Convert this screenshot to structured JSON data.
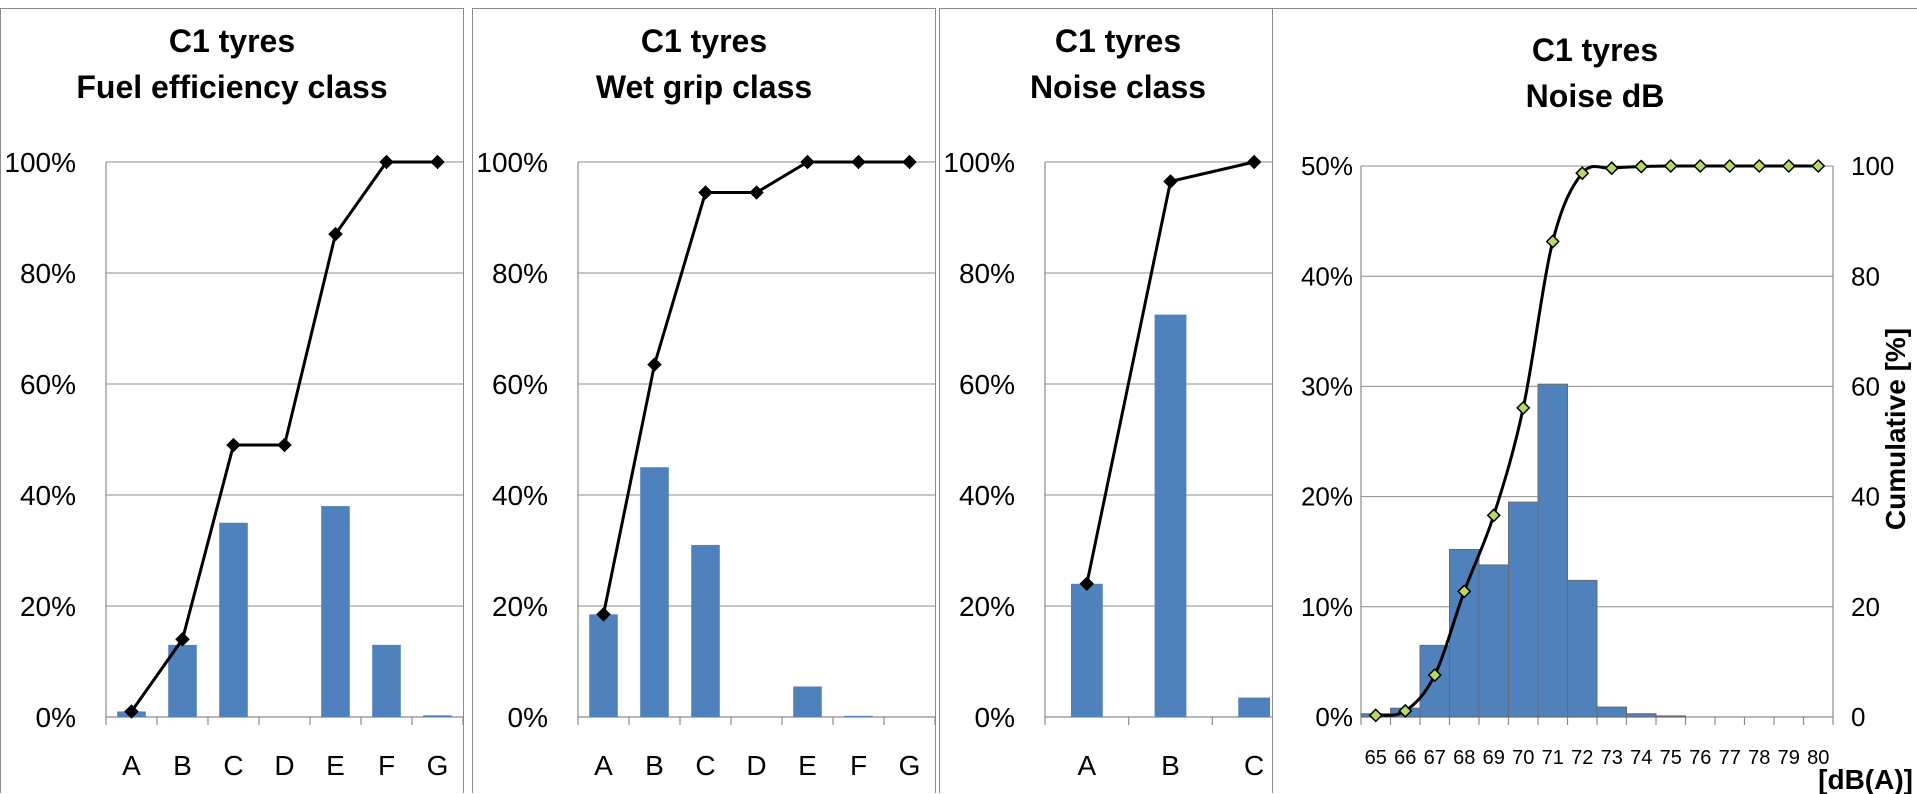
{
  "chart_data": [
    {
      "type": "bar",
      "title": [
        "C1 tyres",
        "Fuel efficiency class"
      ],
      "categories": [
        "A",
        "B",
        "C",
        "D",
        "E",
        "F",
        "G"
      ],
      "series": [
        {
          "type": "bar",
          "values": [
            1,
            13,
            35,
            0,
            38,
            13,
            0.3
          ]
        },
        {
          "type": "line",
          "values": [
            1,
            14,
            49,
            49,
            87,
            100,
            100
          ]
        }
      ],
      "ylim": [
        0,
        100
      ],
      "yticks": [
        "0%",
        "20%",
        "40%",
        "60%",
        "80%",
        "100%"
      ],
      "colors": {
        "bar": "#4f81bd",
        "line": "#000000"
      },
      "grid": true
    },
    {
      "type": "bar",
      "title": [
        "C1 tyres",
        "Wet grip class"
      ],
      "categories": [
        "A",
        "B",
        "C",
        "D",
        "E",
        "F",
        "G"
      ],
      "series": [
        {
          "type": "bar",
          "values": [
            18.5,
            45,
            31,
            0,
            5.5,
            0.2,
            0
          ]
        },
        {
          "type": "line",
          "values": [
            18.5,
            63.5,
            94.5,
            94.5,
            100,
            100,
            100
          ]
        }
      ],
      "ylim": [
        0,
        100
      ],
      "yticks": [
        "0%",
        "20%",
        "40%",
        "60%",
        "80%",
        "100%"
      ],
      "colors": {
        "bar": "#4f81bd",
        "line": "#000000"
      },
      "grid": true
    },
    {
      "type": "bar",
      "title": [
        "C1 tyres",
        "Noise class"
      ],
      "categories": [
        "A",
        "B",
        "C"
      ],
      "series": [
        {
          "type": "bar",
          "values": [
            24,
            72.5,
            3.5
          ]
        },
        {
          "type": "line",
          "values": [
            24,
            96.5,
            100
          ]
        }
      ],
      "ylim": [
        0,
        100
      ],
      "yticks": [
        "0%",
        "20%",
        "40%",
        "60%",
        "80%",
        "100%"
      ],
      "colors": {
        "bar": "#4f81bd",
        "line": "#000000"
      },
      "grid": true
    },
    {
      "type": "bar",
      "title": [
        "C1 tyres",
        "Noise dB"
      ],
      "xlabel": "[dB(A)]",
      "ylabel_right": "Cumulative [%]",
      "categories": [
        "65",
        "66",
        "67",
        "68",
        "69",
        "70",
        "71",
        "72",
        "73",
        "74",
        "75",
        "76",
        "77",
        "78",
        "79",
        "80"
      ],
      "series": [
        {
          "type": "bar",
          "values": [
            0.3,
            0.8,
            6.5,
            15.2,
            13.8,
            19.5,
            30.2,
            12.4,
            0.9,
            0.3,
            0.1,
            0,
            0,
            0,
            0,
            0
          ]
        },
        {
          "type": "line",
          "axis": "right",
          "values": [
            0.3,
            1.1,
            7.6,
            22.8,
            36.6,
            56.1,
            86.3,
            98.7,
            99.6,
            99.9,
            100,
            100,
            100,
            100,
            100,
            100
          ]
        }
      ],
      "ylim": [
        0,
        50
      ],
      "yticks": [
        "0%",
        "10%",
        "20%",
        "30%",
        "40%",
        "50%"
      ],
      "ylim_right": [
        0,
        100
      ],
      "yticks_right": [
        "0",
        "20",
        "40",
        "60",
        "80",
        "100"
      ],
      "colors": {
        "bar": "#4f81bd",
        "bar_border": "#6b6b6b",
        "line": "#000000",
        "marker": "#b7d968"
      },
      "grid": true
    }
  ]
}
